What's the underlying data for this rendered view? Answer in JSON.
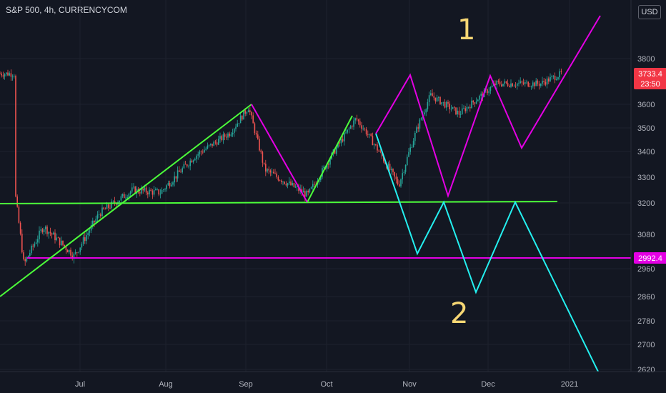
{
  "header": {
    "symbol_title": "S&P 500, 4h, CURRENCYCOM",
    "currency": "USD"
  },
  "colors": {
    "background": "#131722",
    "grid": "#1e222d",
    "up": "#26a69a",
    "down": "#ef5350",
    "green_pattern": "#4cff3a",
    "magenta_pattern": "#e400e4",
    "cyan_pattern": "#24f0f0",
    "annotation": "#f7d774",
    "price_badge": "#f23645"
  },
  "chart_data": {
    "type": "candlestick",
    "instrument": "S&P 500",
    "timeframe": "4h",
    "source": "CURRENCYCOM",
    "x_ticks": [
      "Jul",
      "Aug",
      "Sep",
      "Oct",
      "Nov",
      "Dec",
      "2021"
    ],
    "y_ticks": [
      2620,
      2700,
      2780,
      2860,
      2960,
      3080,
      3200,
      3300,
      3400,
      3500,
      3600,
      3800
    ],
    "y_axis_label": "USD",
    "last_price": {
      "value": "3733.4",
      "countdown": "23:50"
    },
    "horizontal_level_label": "2992.4",
    "approx_price_path": [
      [
        "Jun 8",
        3230
      ],
      [
        "Jun 11",
        2970
      ],
      [
        "Jun 18",
        3110
      ],
      [
        "Jun 29",
        3000
      ],
      [
        "Jul 8",
        3160
      ],
      [
        "Jul 20",
        3250
      ],
      [
        "Jul 30",
        3240
      ],
      [
        "Aug 12",
        3380
      ],
      [
        "Aug 26",
        3480
      ],
      [
        "Sep 2",
        3588
      ],
      [
        "Sep 8",
        3330
      ],
      [
        "Sep 24",
        3230
      ],
      [
        "Oct 12",
        3540
      ],
      [
        "Oct 16",
        3480
      ],
      [
        "Oct 28",
        3270
      ],
      [
        "Nov 4",
        3500
      ],
      [
        "Nov 9",
        3640
      ],
      [
        "Nov 20",
        3560
      ],
      [
        "Dec 4",
        3690
      ],
      [
        "Dec 21",
        3690
      ],
      [
        "Dec 29",
        3733.4
      ]
    ],
    "annotations": [
      {
        "label": "1"
      },
      {
        "label": "2"
      }
    ]
  }
}
